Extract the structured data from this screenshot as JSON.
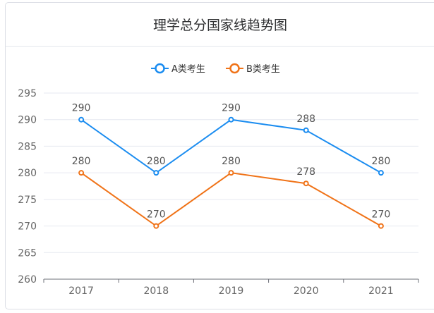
{
  "chart_data": {
    "type": "line",
    "title": "理学总分国家线趋势图",
    "categories": [
      "2017",
      "2018",
      "2019",
      "2020",
      "2021"
    ],
    "series": [
      {
        "name": "A类考生",
        "values": [
          290,
          280,
          290,
          288,
          280
        ],
        "color": "#1a8cf0"
      },
      {
        "name": "B类考生",
        "values": [
          280,
          270,
          280,
          278,
          270
        ],
        "color": "#f07318"
      }
    ],
    "ylim": [
      260,
      295
    ],
    "yticks": [
      260,
      265,
      270,
      275,
      280,
      285,
      290,
      295
    ],
    "grid": true,
    "legend": "top-center",
    "data_labels": true
  }
}
